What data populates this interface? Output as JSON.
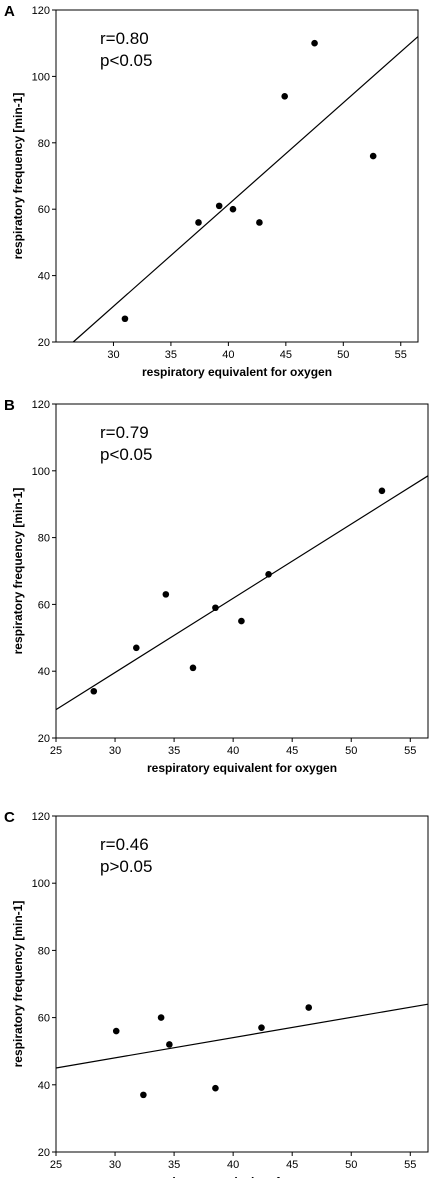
{
  "chart_data": [
    {
      "panel_label": "A",
      "type": "scatter",
      "xlabel": "respiratory equivalent for oxygen",
      "ylabel": "respiratory frequency [min-1]",
      "xlim": [
        25,
        56.5
      ],
      "ylim": [
        20,
        120
      ],
      "xticks": [
        30,
        35,
        40,
        45,
        50,
        55
      ],
      "yticks": [
        20,
        40,
        60,
        80,
        100,
        120
      ],
      "annotation": [
        "r=0.80",
        "p<0.05"
      ],
      "points": [
        {
          "x": 31.0,
          "y": 27
        },
        {
          "x": 37.4,
          "y": 56
        },
        {
          "x": 39.2,
          "y": 61
        },
        {
          "x": 40.4,
          "y": 60
        },
        {
          "x": 42.7,
          "y": 56
        },
        {
          "x": 44.9,
          "y": 94
        },
        {
          "x": 47.5,
          "y": 110
        },
        {
          "x": 52.6,
          "y": 76
        }
      ],
      "fit_line": [
        {
          "x": 26.5,
          "y": 20
        },
        {
          "x": 56.5,
          "y": 112
        }
      ]
    },
    {
      "panel_label": "B",
      "type": "scatter",
      "xlabel": "respiratory equivalent for oxygen",
      "ylabel": "respiratory frequency [min-1]",
      "xlim": [
        25,
        56.5
      ],
      "ylim": [
        20,
        120
      ],
      "xticks": [
        25,
        30,
        35,
        40,
        45,
        50,
        55
      ],
      "yticks": [
        20,
        40,
        60,
        80,
        100,
        120
      ],
      "annotation": [
        "r=0.79",
        "p<0.05"
      ],
      "points": [
        {
          "x": 28.2,
          "y": 34
        },
        {
          "x": 31.8,
          "y": 47
        },
        {
          "x": 34.3,
          "y": 63
        },
        {
          "x": 36.6,
          "y": 41
        },
        {
          "x": 38.5,
          "y": 59
        },
        {
          "x": 40.7,
          "y": 55
        },
        {
          "x": 43.0,
          "y": 69
        },
        {
          "x": 52.6,
          "y": 94
        }
      ],
      "fit_line": [
        {
          "x": 25,
          "y": 28.5
        },
        {
          "x": 56.5,
          "y": 98.5
        }
      ]
    },
    {
      "panel_label": "C",
      "type": "scatter",
      "xlabel": "respiratory equivalent for oxygen",
      "ylabel": "respiratory frequency [min-1]",
      "xlim": [
        25,
        56.5
      ],
      "ylim": [
        20,
        120
      ],
      "xticks": [
        25,
        30,
        35,
        40,
        45,
        50,
        55
      ],
      "yticks": [
        20,
        40,
        60,
        80,
        100,
        120
      ],
      "annotation": [
        "r=0.46",
        "p>0.05"
      ],
      "points": [
        {
          "x": 30.1,
          "y": 56
        },
        {
          "x": 32.4,
          "y": 37
        },
        {
          "x": 33.9,
          "y": 60
        },
        {
          "x": 34.6,
          "y": 52
        },
        {
          "x": 38.5,
          "y": 39
        },
        {
          "x": 42.4,
          "y": 57
        },
        {
          "x": 46.4,
          "y": 63
        }
      ],
      "fit_line": [
        {
          "x": 25,
          "y": 45
        },
        {
          "x": 56.5,
          "y": 64
        }
      ]
    }
  ]
}
